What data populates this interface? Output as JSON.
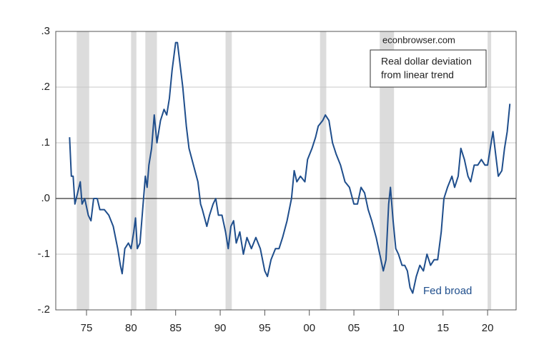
{
  "chart_data": {
    "type": "line",
    "annotation": "econbrowser.com",
    "legend_text": [
      "Real dollar deviation",
      "from linear trend"
    ],
    "xlim": [
      1971.55,
      2023.2
    ],
    "ylim": [
      -0.2,
      0.3
    ],
    "xticks": [
      {
        "value": 1975,
        "label": "75"
      },
      {
        "value": 1980,
        "label": "80"
      },
      {
        "value": 1985,
        "label": "85"
      },
      {
        "value": 1990,
        "label": "90"
      },
      {
        "value": 1995,
        "label": "95"
      },
      {
        "value": 2000,
        "label": "00"
      },
      {
        "value": 2005,
        "label": "05"
      },
      {
        "value": 2010,
        "label": "10"
      },
      {
        "value": 2015,
        "label": "15"
      },
      {
        "value": 2020,
        "label": "20"
      }
    ],
    "yticks": [
      {
        "value": -0.2,
        "label": "-.2"
      },
      {
        "value": -0.1,
        "label": "-.1"
      },
      {
        "value": 0,
        "label": ".0"
      },
      {
        "value": 0.1,
        "label": ".1"
      },
      {
        "value": 0.2,
        "label": ".2"
      },
      {
        "value": 0.3,
        "label": ".3"
      }
    ],
    "grid": true,
    "recessions": [
      [
        1973.9,
        1975.3
      ],
      [
        1980.0,
        1980.6
      ],
      [
        1981.6,
        1982.9
      ],
      [
        1990.6,
        1991.3
      ],
      [
        2001.2,
        2001.9
      ],
      [
        2007.9,
        2009.5
      ],
      [
        2020.0,
        2020.4
      ]
    ],
    "recession_color": "#dcdcdc",
    "x": [
      1973.1,
      1973.3,
      1973.5,
      1973.7,
      1974.0,
      1974.3,
      1974.5,
      1974.8,
      1975.2,
      1975.5,
      1975.8,
      1976.2,
      1976.5,
      1977.0,
      1977.5,
      1978.0,
      1978.5,
      1978.8,
      1979.0,
      1979.3,
      1979.7,
      1980.0,
      1980.3,
      1980.5,
      1980.7,
      1981.0,
      1981.3,
      1981.6,
      1981.8,
      1982.0,
      1982.3,
      1982.6,
      1982.9,
      1983.3,
      1983.7,
      1984.0,
      1984.3,
      1984.6,
      1985.0,
      1985.2,
      1985.5,
      1985.8,
      1986.2,
      1986.5,
      1987.0,
      1987.5,
      1987.8,
      1988.0,
      1988.5,
      1988.8,
      1989.2,
      1989.5,
      1989.8,
      1990.2,
      1990.6,
      1990.9,
      1991.2,
      1991.5,
      1991.8,
      1992.2,
      1992.6,
      1993.0,
      1993.5,
      1994.0,
      1994.5,
      1995.0,
      1995.3,
      1995.7,
      1996.2,
      1996.6,
      1997.0,
      1997.5,
      1998.0,
      1998.3,
      1998.6,
      1999.0,
      1999.5,
      1999.8,
      2000.3,
      2000.7,
      2001.0,
      2001.5,
      2001.8,
      2002.2,
      2002.6,
      2003.0,
      2003.5,
      2004.0,
      2004.5,
      2005.0,
      2005.4,
      2005.8,
      2006.2,
      2006.6,
      2007.0,
      2007.5,
      2007.9,
      2008.3,
      2008.6,
      2008.9,
      2009.1,
      2009.4,
      2009.7,
      2010.0,
      2010.4,
      2010.7,
      2011.0,
      2011.3,
      2011.6,
      2012.0,
      2012.4,
      2012.8,
      2013.2,
      2013.6,
      2014.0,
      2014.4,
      2014.8,
      2015.1,
      2015.5,
      2016.0,
      2016.3,
      2016.7,
      2017.0,
      2017.4,
      2017.8,
      2018.1,
      2018.5,
      2018.9,
      2019.3,
      2019.7,
      2020.0,
      2020.3,
      2020.6,
      2020.9,
      2021.2,
      2021.6,
      2021.9,
      2022.2,
      2022.5
    ],
    "series": [
      {
        "name": "Fed broad",
        "color": "#1f4e8c",
        "values": [
          0.11,
          0.04,
          0.04,
          -0.01,
          0.01,
          0.03,
          -0.01,
          0.0,
          -0.03,
          -0.04,
          0.0,
          0.0,
          -0.02,
          -0.02,
          -0.03,
          -0.05,
          -0.09,
          -0.12,
          -0.135,
          -0.09,
          -0.08,
          -0.09,
          -0.06,
          -0.035,
          -0.09,
          -0.08,
          -0.02,
          0.04,
          0.02,
          0.06,
          0.09,
          0.15,
          0.1,
          0.14,
          0.16,
          0.15,
          0.18,
          0.23,
          0.28,
          0.28,
          0.24,
          0.2,
          0.13,
          0.09,
          0.06,
          0.03,
          -0.01,
          -0.02,
          -0.05,
          -0.03,
          -0.01,
          0.0,
          -0.03,
          -0.03,
          -0.06,
          -0.09,
          -0.05,
          -0.04,
          -0.08,
          -0.06,
          -0.1,
          -0.07,
          -0.09,
          -0.07,
          -0.09,
          -0.13,
          -0.14,
          -0.11,
          -0.09,
          -0.09,
          -0.07,
          -0.04,
          0.0,
          0.05,
          0.03,
          0.04,
          0.03,
          0.07,
          0.09,
          0.11,
          0.13,
          0.14,
          0.15,
          0.14,
          0.1,
          0.08,
          0.06,
          0.03,
          0.02,
          -0.01,
          -0.01,
          0.02,
          0.01,
          -0.02,
          -0.04,
          -0.07,
          -0.1,
          -0.13,
          -0.11,
          -0.01,
          0.02,
          -0.04,
          -0.09,
          -0.1,
          -0.12,
          -0.12,
          -0.13,
          -0.16,
          -0.17,
          -0.14,
          -0.12,
          -0.13,
          -0.1,
          -0.12,
          -0.11,
          -0.11,
          -0.06,
          0.0,
          0.02,
          0.04,
          0.02,
          0.04,
          0.09,
          0.07,
          0.04,
          0.03,
          0.06,
          0.06,
          0.07,
          0.06,
          0.06,
          0.09,
          0.12,
          0.08,
          0.04,
          0.05,
          0.09,
          0.12,
          0.17
        ]
      }
    ]
  }
}
